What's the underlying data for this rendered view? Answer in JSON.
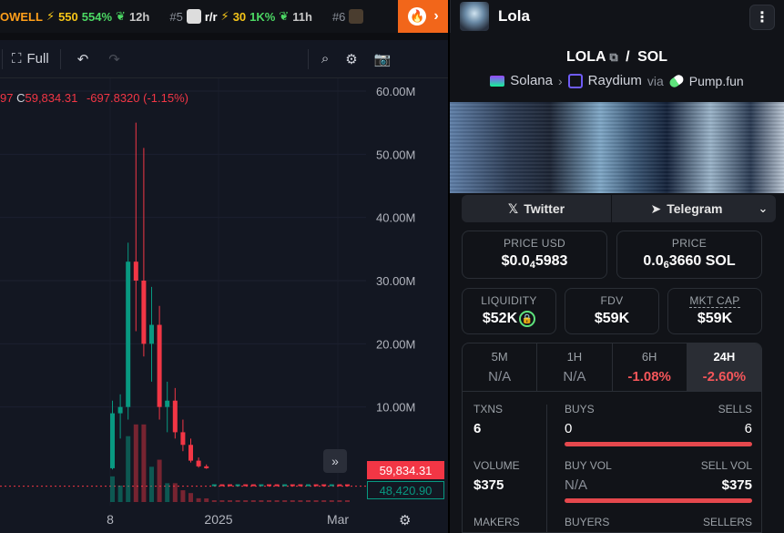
{
  "ticker": [
    {
      "rank": "",
      "symbol": "OWELL",
      "boost": "550",
      "pct": "554%",
      "age": "12h",
      "highlight": true
    },
    {
      "rank": "#5",
      "symbol": "r/r",
      "boost": "30",
      "pct": "1K%",
      "age": "11h",
      "highlight": false
    },
    {
      "rank": "#6",
      "symbol": "",
      "boost": "",
      "pct": "",
      "age": "",
      "highlight": false
    }
  ],
  "header": {
    "pair_name": "Lola",
    "menu_icon": "more-vertical-icon"
  },
  "toolbar": {
    "full_label": "Full"
  },
  "chart_ohlc": {
    "prefix": "97",
    "close_label": "C",
    "close_value": "59,834.31",
    "change": "-697.8320 (-1.15%)"
  },
  "chart_data": {
    "type": "candlestick",
    "y_axis_labels": [
      "60.00M",
      "50.00M",
      "40.00M",
      "30.00M",
      "20.00M",
      "10.00M"
    ],
    "x_axis_labels": [
      "8",
      "2025",
      "Mar"
    ],
    "last_price": "59,834.31",
    "volume_price": "48,420.90",
    "ylim": [
      0,
      62000000
    ],
    "candles": [
      {
        "o": 300000,
        "h": 11000000,
        "l": 100000,
        "c": 9000000
      },
      {
        "o": 9000000,
        "h": 12000000,
        "l": 5000000,
        "c": 10000000
      },
      {
        "o": 10000000,
        "h": 36000000,
        "l": 8000000,
        "c": 33000000
      },
      {
        "o": 33000000,
        "h": 55000000,
        "l": 22000000,
        "c": 30000000
      },
      {
        "o": 30000000,
        "h": 51000000,
        "l": 18000000,
        "c": 20000000
      },
      {
        "o": 20000000,
        "h": 29000000,
        "l": 14000000,
        "c": 23000000
      },
      {
        "o": 23000000,
        "h": 26000000,
        "l": 8000000,
        "c": 10000000
      },
      {
        "o": 10000000,
        "h": 14000000,
        "l": 6000000,
        "c": 11000000
      },
      {
        "o": 11000000,
        "h": 13000000,
        "l": 5000000,
        "c": 6000000
      },
      {
        "o": 6000000,
        "h": 8000000,
        "l": 3000000,
        "c": 4000000
      },
      {
        "o": 4000000,
        "h": 5000000,
        "l": 1200000,
        "c": 1500000
      },
      {
        "o": 1500000,
        "h": 2000000,
        "l": 400000,
        "c": 600000
      },
      {
        "o": 600000,
        "h": 900000,
        "l": 200000,
        "c": 300000
      }
    ],
    "colors": {
      "up": "#089981",
      "down": "#f23645"
    }
  },
  "panel": {
    "title": "LOLA",
    "quote": "SOL",
    "chain": "Solana",
    "dex": "Raydium",
    "via": "via",
    "launchpad": "Pump.fun",
    "twitter": "Twitter",
    "telegram": "Telegram",
    "price_usd_label": "PRICE USD",
    "price_usd_a": "$0.0",
    "price_usd_sub": "4",
    "price_usd_b": "5983",
    "price_label": "PRICE",
    "price_sol_a": "0.0",
    "price_sol_sub": "6",
    "price_sol_b": "3660 SOL",
    "liquidity_label": "LIQUIDITY",
    "liquidity": "$52K",
    "fdv_label": "FDV",
    "fdv": "$59K",
    "mktcap_label": "MKT CAP",
    "mktcap": "$59K",
    "timeframes": [
      {
        "label": "5M",
        "value": "N/A",
        "neg": false,
        "active": false
      },
      {
        "label": "1H",
        "value": "N/A",
        "neg": false,
        "active": false
      },
      {
        "label": "6H",
        "value": "-1.08%",
        "neg": true,
        "active": false
      },
      {
        "label": "24H",
        "value": "-2.60%",
        "neg": true,
        "active": true
      }
    ],
    "txns_label": "TXNS",
    "txns": "6",
    "buys_label": "BUYS",
    "buys": "0",
    "sells_label": "SELLS",
    "sells": "6",
    "volume_label": "VOLUME",
    "volume": "$375",
    "buyvol_label": "BUY VOL",
    "buyvol": "N/A",
    "sellvol_label": "SELL VOL",
    "sellvol": "$375",
    "makers_label": "MAKERS",
    "buyers_label": "BUYERS",
    "sellers_label": "SELLERS"
  }
}
